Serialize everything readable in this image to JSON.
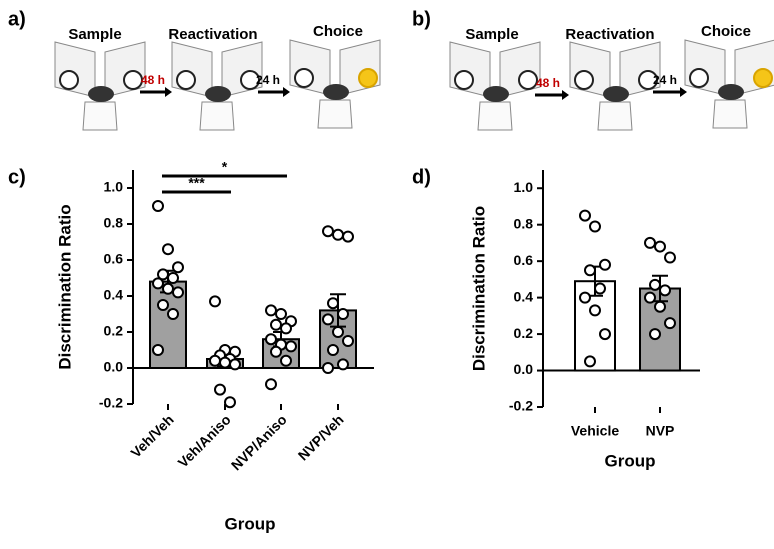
{
  "diagrams": [
    {
      "panel": "a)",
      "stages": [
        "Sample",
        "Reactivation",
        "Choice"
      ],
      "intervals": [
        "48 h",
        "24 h"
      ]
    },
    {
      "panel": "b)",
      "stages": [
        "Sample",
        "Reactivation",
        "Choice"
      ],
      "intervals": [
        "48 h",
        "24 h"
      ]
    }
  ],
  "chart_data": [
    {
      "type": "bar",
      "panel": "c)",
      "ylabel": "Discrimination Ratio",
      "xlabel": "Group",
      "categories": [
        "Veh/Veh",
        "Veh/Aniso",
        "NVP/Aniso",
        "NVP/Veh"
      ],
      "values": [
        0.48,
        0.05,
        0.16,
        0.32
      ],
      "errors": [
        0.06,
        0.04,
        0.04,
        0.09
      ],
      "colors": [
        "#a0a0a0",
        "#a0a0a0",
        "#a0a0a0",
        "#a0a0a0"
      ],
      "points": [
        [
          0.9,
          0.66,
          0.56,
          0.52,
          0.5,
          0.47,
          0.44,
          0.42,
          0.35,
          0.3,
          0.1
        ],
        [
          0.37,
          0.1,
          0.09,
          0.07,
          0.05,
          0.04,
          0.03,
          0.02,
          -0.12,
          -0.19
        ],
        [
          0.32,
          0.3,
          0.26,
          0.24,
          0.22,
          0.16,
          0.13,
          0.12,
          0.09,
          0.04,
          -0.09
        ],
        [
          0.76,
          0.74,
          0.73,
          0.36,
          0.3,
          0.27,
          0.2,
          0.15,
          0.1,
          0.02,
          0.0
        ]
      ],
      "annotations": [
        {
          "label": "***",
          "from": 0,
          "to": 1
        },
        {
          "label": "*",
          "from": 0,
          "to": 2
        }
      ],
      "ylim": [
        -0.2,
        1.1
      ],
      "yticks": [
        -0.2,
        {
          "value": 0,
          "label": "0.0"
        },
        0.2,
        0.4,
        0.6,
        0.8,
        {
          "value": 1,
          "label": "1.0"
        }
      ]
    },
    {
      "type": "bar",
      "panel": "d)",
      "ylabel": "Discrimination Ratio",
      "xlabel": "Group",
      "categories": [
        "Vehicle",
        "NVP"
      ],
      "values": [
        0.49,
        0.45
      ],
      "errors": [
        0.08,
        0.07
      ],
      "colors": [
        "#ffffff",
        "#a0a0a0"
      ],
      "points": [
        [
          0.85,
          0.79,
          0.58,
          0.55,
          0.45,
          0.4,
          0.33,
          0.2,
          0.05
        ],
        [
          0.7,
          0.68,
          0.62,
          0.47,
          0.44,
          0.4,
          0.35,
          0.26,
          0.2
        ]
      ],
      "ylim": [
        -0.2,
        1.1
      ],
      "yticks": [
        -0.2,
        {
          "value": 0,
          "label": "0.0"
        },
        0.2,
        0.4,
        0.6,
        0.8,
        {
          "value": 1,
          "label": "1.0"
        }
      ]
    }
  ]
}
